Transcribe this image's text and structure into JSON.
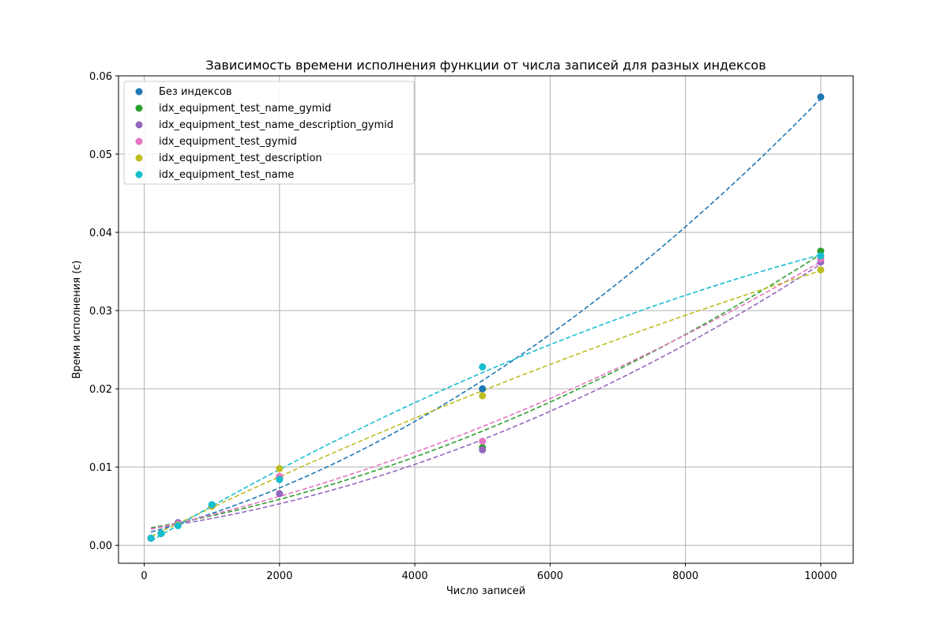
{
  "chart_data": {
    "type": "scatter",
    "title": "Зависимость времени исполнения функции от числа записей для разных индексов",
    "xlabel": "Число записей",
    "ylabel": "Время исполнения (с)",
    "xlim": [
      -380,
      10480
    ],
    "ylim": [
      -0.0023,
      0.06
    ],
    "xticks": [
      0,
      2000,
      4000,
      6000,
      8000,
      10000
    ],
    "xtick_labels": [
      "0",
      "2000",
      "4000",
      "6000",
      "8000",
      "10000"
    ],
    "yticks": [
      0.0,
      0.01,
      0.02,
      0.03,
      0.04,
      0.05,
      0.06
    ],
    "ytick_labels": [
      "0.00",
      "0.01",
      "0.02",
      "0.03",
      "0.04",
      "0.05",
      "0.06"
    ],
    "grid": true,
    "legend_position": "top-left",
    "trend_lines": "dashed quadratic fit per series",
    "x": [
      100,
      250,
      500,
      1000,
      2000,
      5000,
      10000
    ],
    "series": [
      {
        "name": "Без индексов",
        "color": "#1f77b4",
        "values": [
          0.0009,
          0.0015,
          0.0027,
          0.005,
          0.0086,
          0.02,
          0.0573
        ]
      },
      {
        "name": "idx_equipment_test_name_gymid",
        "color": "#2ca02c",
        "values": [
          0.0009,
          0.0015,
          0.0028,
          0.005,
          0.0087,
          0.0125,
          0.0376
        ]
      },
      {
        "name": "idx_equipment_test_name_description_gymid",
        "color": "#9467bd",
        "values": [
          0.0009,
          0.0015,
          0.0029,
          0.005,
          0.0066,
          0.0122,
          0.0362
        ]
      },
      {
        "name": "idx_equipment_test_gymid",
        "color": "#e377c2",
        "values": [
          0.0009,
          0.0015,
          0.0027,
          0.005,
          0.0088,
          0.0133,
          0.0366
        ]
      },
      {
        "name": "idx_equipment_test_description",
        "color": "#bcbd22",
        "values": [
          0.0009,
          0.0015,
          0.0026,
          0.005,
          0.0098,
          0.0191,
          0.0352
        ]
      },
      {
        "name": "idx_equipment_test_name",
        "color": "#17becf",
        "values": [
          0.0009,
          0.0015,
          0.0025,
          0.0052,
          0.0084,
          0.0228,
          0.037
        ]
      }
    ]
  }
}
